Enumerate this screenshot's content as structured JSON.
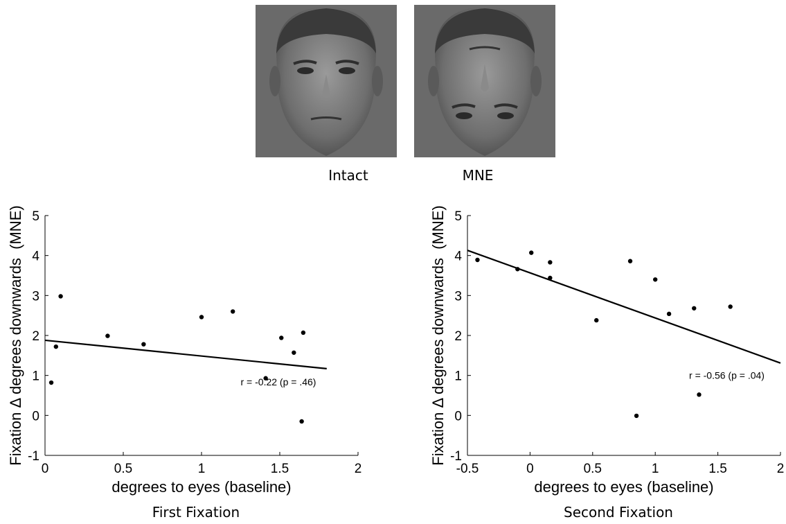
{
  "stimuli": {
    "intact_label": "Intact",
    "mne_label": "MNE"
  },
  "chart_data": [
    {
      "type": "scatter",
      "subtitle": "First Fixation",
      "xlabel": "degrees to eyes (baseline)",
      "ylabel": "Fixation Δ degrees downwards  (MNE)",
      "xlim": [
        0,
        2
      ],
      "ylim": [
        -1,
        5
      ],
      "xticks": [
        0,
        0.5,
        1,
        1.5,
        2
      ],
      "xtick_labels": [
        "0",
        "0.5",
        "1",
        "1.5",
        "2"
      ],
      "yticks": [
        -1,
        0,
        1,
        2,
        3,
        4,
        5
      ],
      "ytick_labels": [
        "-1",
        "0",
        "1",
        "2",
        "3",
        "4",
        "5"
      ],
      "points": [
        {
          "x": 0.04,
          "y": 0.82
        },
        {
          "x": 0.07,
          "y": 1.72
        },
        {
          "x": 0.1,
          "y": 2.98
        },
        {
          "x": 0.4,
          "y": 1.99
        },
        {
          "x": 0.63,
          "y": 1.78
        },
        {
          "x": 1.0,
          "y": 2.46
        },
        {
          "x": 1.2,
          "y": 2.6
        },
        {
          "x": 1.41,
          "y": 0.93
        },
        {
          "x": 1.51,
          "y": 1.94
        },
        {
          "x": 1.59,
          "y": 1.57
        },
        {
          "x": 1.64,
          "y": -0.15
        },
        {
          "x": 1.65,
          "y": 2.07
        }
      ],
      "fit_line": {
        "x": [
          0,
          1.8
        ],
        "y": [
          1.88,
          1.17
        ]
      },
      "annotation": {
        "text": "r = -0.22 (p = .46)",
        "x": 1.25,
        "y": 0.75
      }
    },
    {
      "type": "scatter",
      "subtitle": "Second Fixation",
      "xlabel": "degrees to eyes (baseline)",
      "ylabel": "Fixation Δ degrees downwards  (MNE)",
      "xlim": [
        -0.5,
        2
      ],
      "ylim": [
        -1,
        5
      ],
      "xticks": [
        -0.5,
        0,
        0.5,
        1,
        1.5,
        2
      ],
      "xtick_labels": [
        "-0.5",
        "0",
        "0.5",
        "1",
        "1.5",
        "2"
      ],
      "yticks": [
        -1,
        0,
        1,
        2,
        3,
        4,
        5
      ],
      "ytick_labels": [
        "-1",
        "0",
        "1",
        "2",
        "3",
        "4",
        "5"
      ],
      "points": [
        {
          "x": -0.42,
          "y": 3.89
        },
        {
          "x": -0.1,
          "y": 3.66
        },
        {
          "x": 0.01,
          "y": 4.07
        },
        {
          "x": 0.16,
          "y": 3.83
        },
        {
          "x": 0.16,
          "y": 3.44
        },
        {
          "x": 0.53,
          "y": 2.38
        },
        {
          "x": 0.8,
          "y": 3.86
        },
        {
          "x": 0.85,
          "y": -0.01
        },
        {
          "x": 1.0,
          "y": 3.4
        },
        {
          "x": 1.11,
          "y": 2.54
        },
        {
          "x": 1.31,
          "y": 2.68
        },
        {
          "x": 1.35,
          "y": 0.52
        },
        {
          "x": 1.6,
          "y": 2.72
        }
      ],
      "fit_line": {
        "x": [
          -0.5,
          2
        ],
        "y": [
          4.13,
          1.31
        ]
      },
      "annotation": {
        "text": "r = -0.56 (p = .04)",
        "x": 1.27,
        "y": 0.92
      }
    }
  ]
}
